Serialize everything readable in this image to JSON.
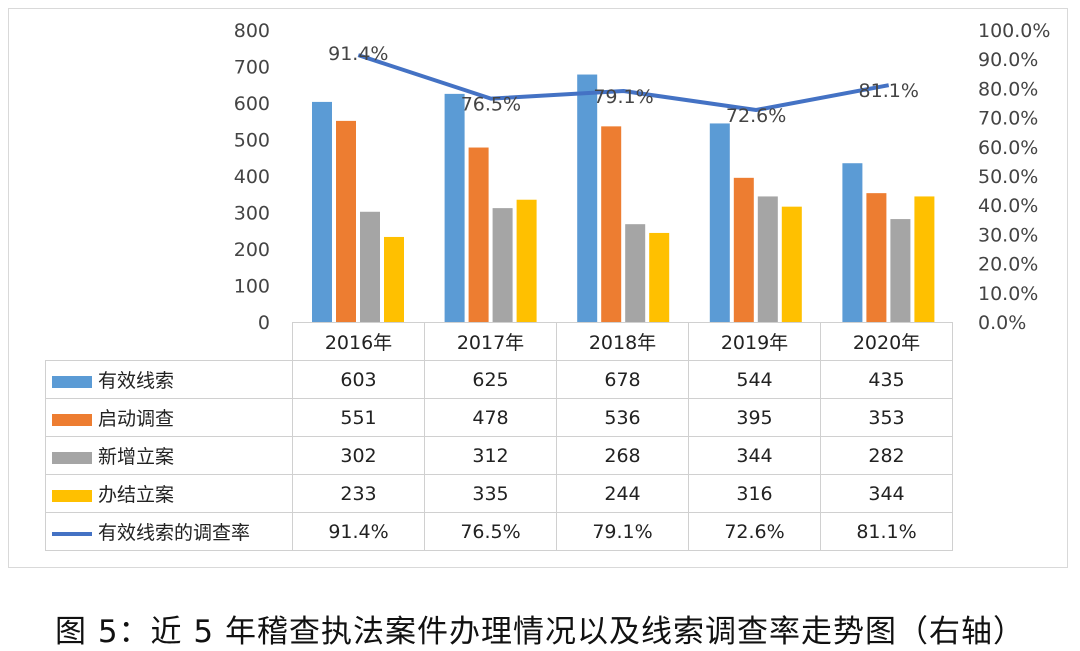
{
  "chart_data": {
    "type": "bar+line",
    "categories": [
      "2016年",
      "2017年",
      "2018年",
      "2019年",
      "2020年"
    ],
    "series": [
      {
        "name": "有效线索",
        "type": "bar",
        "axis": "left",
        "color": "#5B9BD5",
        "values": [
          603,
          625,
          678,
          544,
          435
        ]
      },
      {
        "name": "启动调查",
        "type": "bar",
        "axis": "left",
        "color": "#ED7D31",
        "values": [
          551,
          478,
          536,
          395,
          353
        ]
      },
      {
        "name": "新增立案",
        "type": "bar",
        "axis": "left",
        "color": "#A5A5A5",
        "values": [
          302,
          312,
          268,
          344,
          282
        ]
      },
      {
        "name": "办结立案",
        "type": "bar",
        "axis": "left",
        "color": "#FFC000",
        "values": [
          233,
          335,
          244,
          316,
          344
        ]
      },
      {
        "name": "有效线索的调查率",
        "type": "line",
        "axis": "right",
        "color": "#4472C4",
        "values": [
          91.4,
          76.5,
          79.1,
          72.6,
          81.1
        ],
        "labels": [
          "91.4%",
          "76.5%",
          "79.1%",
          "72.6%",
          "81.1%"
        ]
      }
    ],
    "left_axis": {
      "ylim": [
        0,
        800
      ],
      "ticks": [
        "0",
        "100",
        "200",
        "300",
        "400",
        "500",
        "600",
        "700",
        "800"
      ]
    },
    "right_axis": {
      "ylim": [
        0,
        100
      ],
      "ticks": [
        "0.0%",
        "10.0%",
        "20.0%",
        "30.0%",
        "40.0%",
        "50.0%",
        "60.0%",
        "70.0%",
        "80.0%",
        "90.0%",
        "100.0%"
      ]
    },
    "grid": false,
    "legend": "data-table-below"
  },
  "caption": "图 5：近 5 年稽查执法案件办理情况以及线索调查率走势图（右轴）"
}
